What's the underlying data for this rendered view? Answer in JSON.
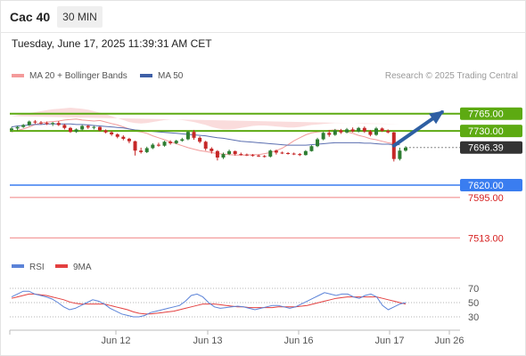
{
  "header": {
    "title": "Cac 40",
    "timeframe": "30 MIN"
  },
  "datetime": "Tuesday, June 17, 2025 11:39:31 AM CET",
  "legend": {
    "ma20_label": "MA 20 + Bollinger Bands",
    "ma50_label": "MA 50",
    "credit": "Research © 2025 Trading Central"
  },
  "colors": {
    "up": "#2e7d32",
    "down": "#c62828",
    "ma50": "#5b6fb0",
    "bb": "#f8d0d0",
    "green_level": "#5daa12",
    "blue_level": "#3a7df0",
    "red_level": "#f08080",
    "rsi": "#5b83d8",
    "rsi_ma": "#e34040"
  },
  "chart_data": [
    {
      "type": "candlestick",
      "x_tick_labels": [
        "Jun 12",
        "Jun 13",
        "Jun 16",
        "Jun 17",
        "Jun 26"
      ],
      "ylim": [
        7490,
        7815
      ],
      "close": [
        7728,
        7731,
        7734,
        7738,
        7743,
        7746,
        7748,
        7749,
        7750,
        7752,
        7753,
        7754,
        7752,
        7751,
        7750,
        7751,
        7748,
        7745,
        7742,
        7738,
        7734,
        7730,
        7728,
        7725,
        7720,
        7716,
        7712,
        7708,
        7704,
        7700,
        7696,
        7693,
        7690,
        7688,
        7686,
        7684,
        7683,
        7682,
        7681,
        7681,
        7681,
        7682,
        7682,
        7684,
        7686,
        7690,
        7695,
        7702,
        7710,
        7716,
        7722,
        7726,
        7728,
        7729,
        7731,
        7732,
        7731,
        7728,
        7725,
        7721,
        7718,
        7714,
        7712,
        7709,
        7706,
        7704,
        7703
      ],
      "bars": [
        {
          "o": 7732,
          "h": 7738,
          "l": 7728,
          "c": 7735
        },
        {
          "o": 7735,
          "h": 7740,
          "l": 7731,
          "c": 7738
        },
        {
          "o": 7738,
          "h": 7744,
          "l": 7736,
          "c": 7742
        },
        {
          "o": 7742,
          "h": 7751,
          "l": 7740,
          "c": 7749
        },
        {
          "o": 7749,
          "h": 7752,
          "l": 7744,
          "c": 7747
        },
        {
          "o": 7747,
          "h": 7750,
          "l": 7743,
          "c": 7746
        },
        {
          "o": 7746,
          "h": 7749,
          "l": 7742,
          "c": 7744
        },
        {
          "o": 7744,
          "h": 7748,
          "l": 7740,
          "c": 7746
        },
        {
          "o": 7746,
          "h": 7750,
          "l": 7740,
          "c": 7742
        },
        {
          "o": 7742,
          "h": 7744,
          "l": 7733,
          "c": 7736
        },
        {
          "o": 7736,
          "h": 7738,
          "l": 7726,
          "c": 7728
        },
        {
          "o": 7728,
          "h": 7735,
          "l": 7726,
          "c": 7733
        },
        {
          "o": 7733,
          "h": 7742,
          "l": 7731,
          "c": 7740
        },
        {
          "o": 7740,
          "h": 7742,
          "l": 7734,
          "c": 7737
        },
        {
          "o": 7737,
          "h": 7740,
          "l": 7733,
          "c": 7738
        },
        {
          "o": 7738,
          "h": 7739,
          "l": 7729,
          "c": 7731
        },
        {
          "o": 7731,
          "h": 7733,
          "l": 7725,
          "c": 7727
        },
        {
          "o": 7727,
          "h": 7730,
          "l": 7720,
          "c": 7723
        },
        {
          "o": 7723,
          "h": 7725,
          "l": 7715,
          "c": 7718
        },
        {
          "o": 7718,
          "h": 7721,
          "l": 7711,
          "c": 7714
        },
        {
          "o": 7714,
          "h": 7716,
          "l": 7705,
          "c": 7709
        },
        {
          "o": 7709,
          "h": 7710,
          "l": 7680,
          "c": 7690
        },
        {
          "o": 7690,
          "h": 7696,
          "l": 7684,
          "c": 7687
        },
        {
          "o": 7687,
          "h": 7698,
          "l": 7685,
          "c": 7695
        },
        {
          "o": 7695,
          "h": 7705,
          "l": 7693,
          "c": 7702
        },
        {
          "o": 7702,
          "h": 7706,
          "l": 7698,
          "c": 7700
        },
        {
          "o": 7700,
          "h": 7710,
          "l": 7698,
          "c": 7708
        },
        {
          "o": 7708,
          "h": 7711,
          "l": 7702,
          "c": 7705
        },
        {
          "o": 7705,
          "h": 7712,
          "l": 7703,
          "c": 7710
        },
        {
          "o": 7710,
          "h": 7716,
          "l": 7708,
          "c": 7713
        },
        {
          "o": 7713,
          "h": 7730,
          "l": 7711,
          "c": 7728
        },
        {
          "o": 7728,
          "h": 7732,
          "l": 7712,
          "c": 7716
        },
        {
          "o": 7716,
          "h": 7719,
          "l": 7705,
          "c": 7708
        },
        {
          "o": 7708,
          "h": 7710,
          "l": 7690,
          "c": 7694
        },
        {
          "o": 7694,
          "h": 7697,
          "l": 7684,
          "c": 7689
        },
        {
          "o": 7689,
          "h": 7691,
          "l": 7670,
          "c": 7676
        },
        {
          "o": 7676,
          "h": 7686,
          "l": 7673,
          "c": 7683
        },
        {
          "o": 7683,
          "h": 7692,
          "l": 7681,
          "c": 7689
        },
        {
          "o": 7689,
          "h": 7690,
          "l": 7680,
          "c": 7683
        },
        {
          "o": 7683,
          "h": 7686,
          "l": 7680,
          "c": 7682
        },
        {
          "o": 7682,
          "h": 7684,
          "l": 7679,
          "c": 7681
        },
        {
          "o": 7681,
          "h": 7683,
          "l": 7678,
          "c": 7680
        },
        {
          "o": 7680,
          "h": 7682,
          "l": 7677,
          "c": 7679
        },
        {
          "o": 7679,
          "h": 7681,
          "l": 7676,
          "c": 7678
        },
        {
          "o": 7678,
          "h": 7692,
          "l": 7676,
          "c": 7690
        },
        {
          "o": 7690,
          "h": 7692,
          "l": 7682,
          "c": 7686
        },
        {
          "o": 7686,
          "h": 7688,
          "l": 7683,
          "c": 7685
        },
        {
          "o": 7685,
          "h": 7687,
          "l": 7682,
          "c": 7684
        },
        {
          "o": 7684,
          "h": 7686,
          "l": 7681,
          "c": 7683
        },
        {
          "o": 7683,
          "h": 7685,
          "l": 7679,
          "c": 7681
        },
        {
          "o": 7681,
          "h": 7691,
          "l": 7680,
          "c": 7689
        },
        {
          "o": 7689,
          "h": 7701,
          "l": 7688,
          "c": 7699
        },
        {
          "o": 7699,
          "h": 7716,
          "l": 7697,
          "c": 7713
        },
        {
          "o": 7713,
          "h": 7728,
          "l": 7711,
          "c": 7726
        },
        {
          "o": 7726,
          "h": 7732,
          "l": 7718,
          "c": 7722
        },
        {
          "o": 7722,
          "h": 7734,
          "l": 7720,
          "c": 7731
        },
        {
          "o": 7731,
          "h": 7734,
          "l": 7724,
          "c": 7727
        },
        {
          "o": 7727,
          "h": 7736,
          "l": 7725,
          "c": 7733
        },
        {
          "o": 7733,
          "h": 7737,
          "l": 7727,
          "c": 7729
        },
        {
          "o": 7729,
          "h": 7738,
          "l": 7727,
          "c": 7736
        },
        {
          "o": 7736,
          "h": 7739,
          "l": 7726,
          "c": 7729
        },
        {
          "o": 7729,
          "h": 7732,
          "l": 7719,
          "c": 7722
        },
        {
          "o": 7722,
          "h": 7738,
          "l": 7720,
          "c": 7735
        },
        {
          "o": 7735,
          "h": 7737,
          "l": 7728,
          "c": 7730
        },
        {
          "o": 7730,
          "h": 7733,
          "l": 7725,
          "c": 7727
        },
        {
          "o": 7727,
          "h": 7728,
          "l": 7668,
          "c": 7673
        },
        {
          "o": 7673,
          "h": 7696,
          "l": 7670,
          "c": 7690
        },
        {
          "o": 7690,
          "h": 7699,
          "l": 7688,
          "c": 7696
        }
      ],
      "bb_upper": [
        7760,
        7762,
        7764,
        7766,
        7768,
        7770,
        7772,
        7774,
        7775,
        7776,
        7777,
        7776,
        7775,
        7773,
        7770,
        7767,
        7764,
        7760,
        7756,
        7752,
        7748,
        7746,
        7745,
        7746,
        7748,
        7750,
        7752,
        7753,
        7753,
        7752,
        7750,
        7748,
        7745,
        7742,
        7738,
        7735,
        7733,
        7733,
        7734,
        7736,
        7738,
        7740,
        7741,
        7741,
        7740,
        7739,
        7738,
        7737,
        7737,
        7738,
        7740,
        7742,
        7743,
        7744,
        7745,
        7746,
        7746,
        7746,
        7746,
        7745,
        7744,
        7744,
        7744,
        7744,
        7744,
        7744,
        7744
      ],
      "bb_lower": [
        7700,
        7702,
        7706,
        7710,
        7714,
        7718,
        7722,
        7726,
        7728,
        7728,
        7726,
        7724,
        7722,
        7719,
        7716,
        7712,
        7708,
        7703,
        7697,
        7690,
        7683,
        7676,
        7672,
        7670,
        7668,
        7667,
        7666,
        7665,
        7664,
        7663,
        7662,
        7662,
        7662,
        7663,
        7664,
        7665,
        7665,
        7665,
        7664,
        7663,
        7662,
        7661,
        7660,
        7660,
        7661,
        7662,
        7663,
        7664,
        7666,
        7670,
        7676,
        7682,
        7688,
        7692,
        7696,
        7698,
        7700,
        7700,
        7700,
        7700,
        7699,
        7698,
        7697,
        7697,
        7696,
        7696,
        7696
      ],
      "ma50": [
        7738,
        7740,
        7741,
        7742,
        7743,
        7743,
        7744,
        7744,
        7744,
        7744,
        7744,
        7743,
        7743,
        7742,
        7741,
        7740,
        7739,
        7738,
        7737,
        7736,
        7734,
        7732,
        7731,
        7730,
        7729,
        7728,
        7727,
        7726,
        7725,
        7724,
        7723,
        7722,
        7721,
        7720,
        7718,
        7716,
        7715,
        7713,
        7711,
        7709,
        7708,
        7707,
        7706,
        7705,
        7704,
        7703,
        7702,
        7701,
        7701,
        7701,
        7701,
        7702,
        7703,
        7704,
        7705,
        7706,
        7706,
        7706,
        7706,
        7706,
        7705,
        7705,
        7704,
        7703,
        7703,
        7702,
        7702
      ],
      "levels": [
        {
          "label": "7765.00",
          "value": 7765,
          "kind": "resistance"
        },
        {
          "label": "7730.00",
          "value": 7730,
          "kind": "resistance"
        },
        {
          "label": "7696.39",
          "value": 7696.39,
          "kind": "last"
        },
        {
          "label": "7620.00",
          "value": 7620,
          "kind": "support"
        },
        {
          "label": "7595.00",
          "value": 7595,
          "kind": "support"
        },
        {
          "label": "7513.00",
          "value": 7513,
          "kind": "support"
        }
      ],
      "arrow": {
        "x_from": 65,
        "y_from": 7700,
        "x_to": 75,
        "y_to": 7768
      }
    },
    {
      "type": "line",
      "title": "RSI",
      "legend": [
        "RSI",
        "9MA"
      ],
      "yticks": [
        30,
        50,
        70
      ],
      "ylim": [
        10,
        85
      ],
      "rsi": [
        58,
        62,
        66,
        66,
        62,
        60,
        58,
        55,
        50,
        44,
        40,
        42,
        46,
        50,
        54,
        52,
        48,
        42,
        38,
        34,
        32,
        30,
        30,
        32,
        36,
        38,
        40,
        42,
        44,
        46,
        52,
        60,
        62,
        58,
        50,
        44,
        42,
        43,
        44,
        45,
        44,
        42,
        40,
        42,
        44,
        46,
        46,
        44,
        42,
        44,
        48,
        52,
        56,
        60,
        64,
        62,
        60,
        62,
        62,
        58,
        56,
        60,
        62,
        58,
        46,
        40,
        44,
        48,
        50
      ],
      "rsi_ma": [
        56,
        58,
        60,
        62,
        62,
        61,
        60,
        58,
        56,
        54,
        51,
        49,
        48,
        48,
        48,
        48,
        48,
        46,
        44,
        42,
        40,
        37,
        35,
        34,
        34,
        35,
        36,
        37,
        38,
        40,
        42,
        44,
        46,
        48,
        48,
        48,
        47,
        46,
        45,
        44,
        44,
        43,
        43,
        43,
        43,
        43,
        44,
        44,
        44,
        44,
        45,
        46,
        48,
        50,
        52,
        54,
        56,
        57,
        58,
        58,
        58,
        58,
        58,
        58,
        56,
        54,
        52,
        50,
        48
      ]
    }
  ]
}
